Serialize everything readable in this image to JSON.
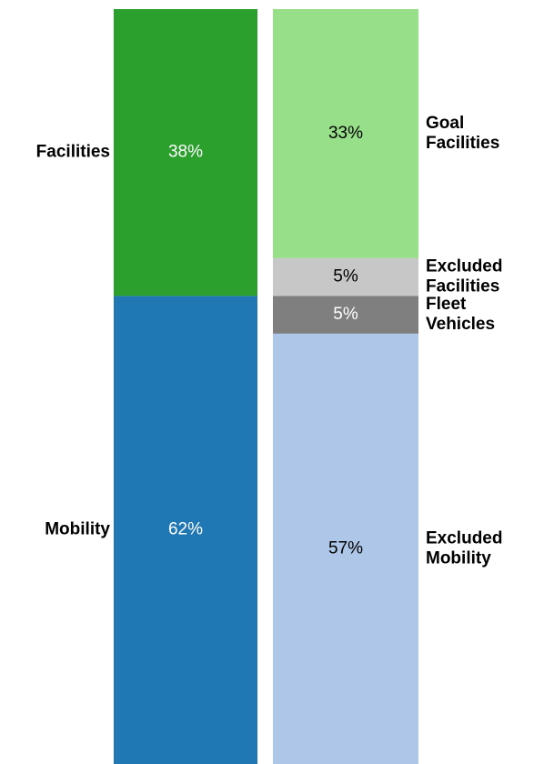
{
  "chart_data": {
    "type": "stacked_bar",
    "ylim": [
      0,
      100
    ],
    "bars": [
      {
        "label_side": "left",
        "segments": [
          {
            "name": "Facilities",
            "value": 38,
            "value_label": "38%",
            "color": "#2ca02c",
            "text_color": "#ffffff"
          },
          {
            "name": "Mobility",
            "value": 62,
            "value_label": "62%",
            "color": "#1f77b4",
            "text_color": "#ffffff"
          }
        ]
      },
      {
        "label_side": "right",
        "segments": [
          {
            "name": "Goal Facilities",
            "value": 33,
            "value_label": "33%",
            "color": "#98df8a",
            "text_color": "#000000"
          },
          {
            "name": "Excluded Facilities",
            "value": 5,
            "value_label": "5%",
            "color": "#c7c7c7",
            "text_color": "#000000"
          },
          {
            "name": "Fleet Vehicles",
            "value": 5,
            "value_label": "5%",
            "color": "#7f7f7f",
            "text_color": "#ffffff"
          },
          {
            "name": "Excluded Mobility",
            "value": 57,
            "value_label": "57%",
            "color": "#aec7e8",
            "text_color": "#000000"
          }
        ]
      }
    ]
  }
}
